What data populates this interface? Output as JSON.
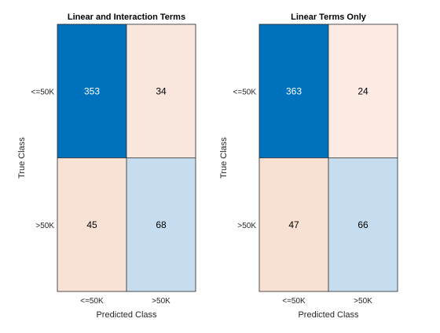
{
  "chart_data": [
    {
      "type": "heatmap",
      "title": "Linear and Interaction Terms",
      "xlabel": "Predicted Class",
      "ylabel": "True Class",
      "x_categories": [
        "<=50K",
        ">50K"
      ],
      "y_categories": [
        "<=50K",
        ">50K"
      ],
      "values": [
        [
          353,
          34
        ],
        [
          45,
          68
        ]
      ],
      "colors": {
        "correct_strong": "#0072BD",
        "correct_light": "#C5DDEF",
        "incorrect_light": "#F9E6DC",
        "incorrect_mid": "#F8E2D6",
        "text_on_dark": "#FFFFFF",
        "text_on_light": "#000000"
      }
    },
    {
      "type": "heatmap",
      "title": "Linear Terms Only",
      "xlabel": "Predicted Class",
      "ylabel": "True Class",
      "x_categories": [
        "<=50K",
        ">50K"
      ],
      "y_categories": [
        "<=50K",
        ">50K"
      ],
      "values": [
        [
          363,
          24
        ],
        [
          47,
          66
        ]
      ],
      "colors": {
        "correct_strong": "#0072BD",
        "correct_light": "#C5DDEF",
        "incorrect_light": "#FBEBE3",
        "incorrect_mid": "#F8E0D3",
        "text_on_dark": "#FFFFFF",
        "text_on_light": "#000000"
      }
    }
  ]
}
